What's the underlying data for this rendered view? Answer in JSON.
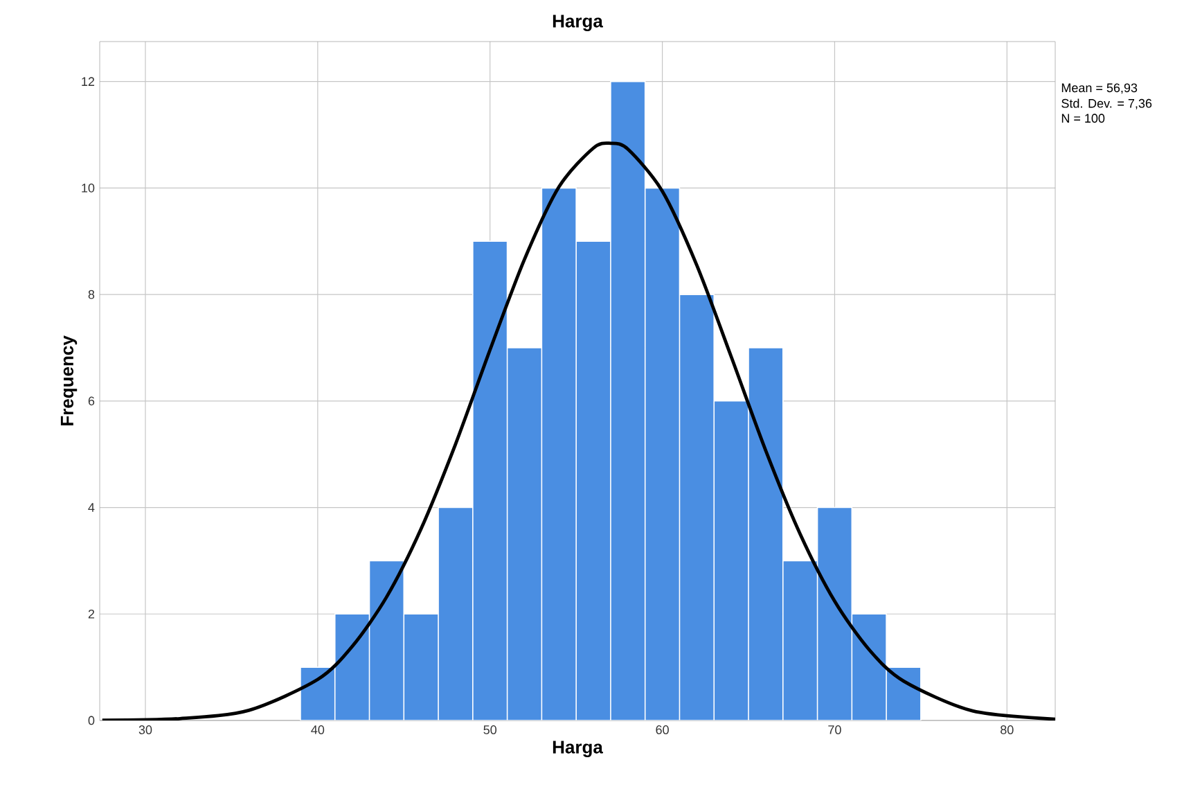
{
  "chart_data": {
    "type": "histogram",
    "title": "Harga",
    "xlabel": "Harga",
    "ylabel": "Frequency",
    "bins": [
      39,
      41,
      43,
      45,
      47,
      49,
      51,
      53,
      55,
      57,
      59,
      61,
      63,
      65,
      67,
      69,
      71,
      73,
      75
    ],
    "values": [
      1,
      2,
      3,
      2,
      4,
      9,
      7,
      10,
      9,
      12,
      10,
      8,
      6,
      7,
      3,
      4,
      2,
      1
    ],
    "color": "#4a8ee2",
    "series": [
      {
        "type": "line",
        "color": "#000000",
        "x": [
          27.5,
          32,
          36,
          40,
          42,
          44,
          46,
          48,
          50,
          52,
          54,
          56,
          57,
          58,
          60,
          62,
          64,
          66,
          68,
          70,
          72,
          74,
          78,
          82.8
        ],
        "values": [
          0.004,
          0.035,
          0.19,
          0.77,
          1.39,
          2.32,
          3.6,
          5.19,
          6.96,
          8.66,
          10.02,
          10.75,
          10.84,
          10.73,
          9.94,
          8.55,
          6.83,
          5.07,
          3.5,
          2.24,
          1.33,
          0.74,
          0.18,
          0.025
        ]
      }
    ],
    "xlim": [
      27.35,
      82.8
    ],
    "ylim": [
      0,
      12.75
    ],
    "xticks": [
      30,
      40,
      50,
      60,
      70,
      80
    ],
    "yticks": [
      0,
      2,
      4,
      6,
      8,
      10,
      12
    ],
    "grid": true,
    "annotations": [
      "Mean = 56,93",
      "Std. Dev. = 7,36",
      "N = 100"
    ]
  }
}
